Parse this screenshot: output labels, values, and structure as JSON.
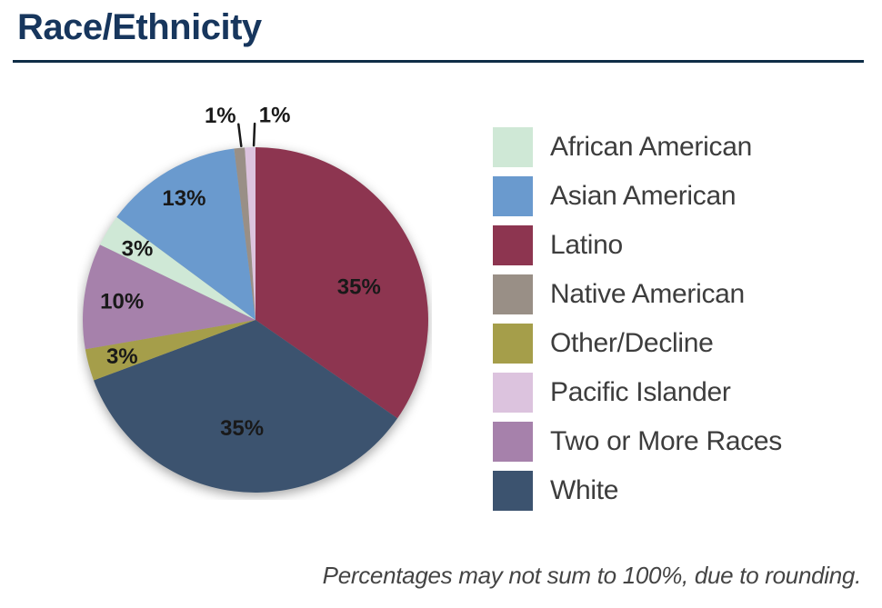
{
  "header": {
    "title": "Race/Ethnicity"
  },
  "theme": {
    "background": "#ffffff",
    "title_color": "#17365d",
    "rule_color": "#0e2d46",
    "legend_text_color": "#3d3d3d",
    "footnote_color": "#444444",
    "slice_label_color": "#191919"
  },
  "chart_data": {
    "type": "pie",
    "title": "Race/Ethnicity",
    "unit": "percent",
    "start_angle_deg": 0,
    "direction": "clockwise",
    "slices": [
      {
        "name": "Latino",
        "value": 35,
        "label": "35%",
        "color": "#8d3550",
        "label_placement": "inside",
        "label_r": 0.63,
        "label_angle": 72
      },
      {
        "name": "White",
        "value": 35,
        "label": "35%",
        "color": "#3c536f",
        "label_placement": "inside",
        "label_r": 0.63
      },
      {
        "name": "Other/Decline",
        "value": 3,
        "label": "3%",
        "color": "#a59e4a",
        "label_placement": "inside",
        "label_r": 0.8
      },
      {
        "name": "Two or More Races",
        "value": 10,
        "label": "10%",
        "color": "#a681ab",
        "label_placement": "inside",
        "label_r": 0.78
      },
      {
        "name": "African American",
        "value": 3,
        "label": "3%",
        "color": "#cfe8d6",
        "label_placement": "inside",
        "label_r": 0.8
      },
      {
        "name": "Asian American",
        "value": 13,
        "label": "13%",
        "color": "#6a9ace",
        "label_placement": "inside",
        "label_r": 0.82
      },
      {
        "name": "Native American",
        "value": 1,
        "label": "1%",
        "color": "#998f86",
        "label_placement": "outside-left"
      },
      {
        "name": "Pacific Islander",
        "value": 1,
        "label": "1%",
        "color": "#dcc3de",
        "label_placement": "outside-right"
      }
    ],
    "legend": {
      "position": "right",
      "entries": [
        {
          "label": "African American",
          "color": "#cfe8d6"
        },
        {
          "label": "Asian American",
          "color": "#6a9ace"
        },
        {
          "label": "Latino",
          "color": "#8d3550"
        },
        {
          "label": "Native American",
          "color": "#998f86"
        },
        {
          "label": "Other/Decline",
          "color": "#a59e4a"
        },
        {
          "label": "Pacific Islander",
          "color": "#dcc3de"
        },
        {
          "label": "Two or More Races",
          "color": "#a681ab"
        },
        {
          "label": "White",
          "color": "#3c536f"
        }
      ]
    },
    "footnote": "Percentages may not sum to 100%, due to rounding."
  }
}
